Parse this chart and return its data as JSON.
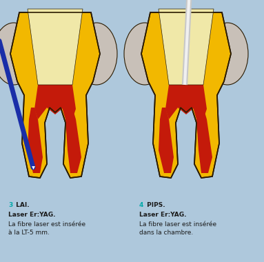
{
  "bg_color": "#aec8dc",
  "tooth_yellow": "#f2b800",
  "tooth_yellow_dark": "#d4960a",
  "tooth_pulp_red": "#c41a0a",
  "tooth_outline": "#2a1a00",
  "tooth_crown_cream": "#f0e8a8",
  "tooth_gum_gray": "#c8c0b8",
  "fiber_blue": "#1a2ea8",
  "fiber_gray": "#c8c8c8",
  "fiber_white": "#f0f0f0",
  "text_teal": "#00a8a8",
  "text_black": "#1a1a1a",
  "label3_num": "3",
  "label3_bold": " LAI.",
  "label3_line2": "Laser Er:YAG.",
  "label3_line3": "La fibre laser est insérée",
  "label3_line4": "à la LT-5 mm.",
  "label4_num": "4",
  "label4_bold": " PIPS.",
  "label4_line2": "Laser Er:YAG.",
  "label4_line3": "La fibre laser est insérée",
  "label4_line4": "dans la chambre.",
  "fontsize_label": 6.5,
  "fontsize_bold": 6.5
}
